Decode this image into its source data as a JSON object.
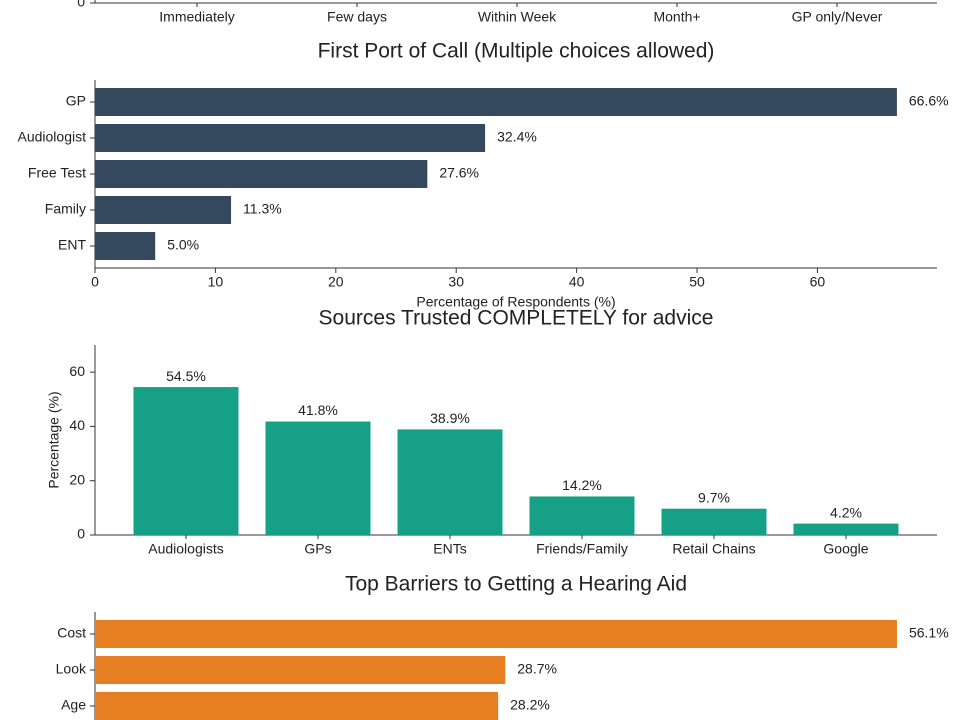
{
  "chart_data": [
    {
      "type": "bar",
      "categories": [
        "Immediately",
        "Few days",
        "Within Week",
        "Month+",
        "GP only/Never"
      ],
      "yticks": [
        0
      ]
    },
    {
      "type": "barh",
      "title": "First Port of Call (Multiple choices allowed)",
      "categories": [
        "GP",
        "Audiologist",
        "Free Test",
        "Family",
        "ENT"
      ],
      "values": [
        66.6,
        32.4,
        27.6,
        11.3,
        5.0
      ],
      "value_labels": [
        "66.6%",
        "32.4%",
        "27.6%",
        "11.3%",
        "5.0%"
      ],
      "color": "#34495e",
      "xlim": [
        0,
        69.93
      ],
      "xticks": [
        0,
        10,
        20,
        30,
        40,
        50,
        60
      ],
      "xlabel": "Percentage of Respondents (%)"
    },
    {
      "type": "bar",
      "title": "Sources Trusted COMPLETELY for advice",
      "categories": [
        "Audiologists",
        "GPs",
        "ENTs",
        "Friends/Family",
        "Retail Chains",
        "Google"
      ],
      "values": [
        54.5,
        41.8,
        38.9,
        14.2,
        9.7,
        4.2
      ],
      "value_labels": [
        "54.5%",
        "41.8%",
        "38.9%",
        "14.2%",
        "9.7%",
        "4.2%"
      ],
      "color": "#16a085",
      "ylim": [
        0,
        70
      ],
      "yticks": [
        0,
        20,
        40,
        60
      ],
      "ylabel": "Percentage (%)"
    },
    {
      "type": "barh",
      "title": "Top Barriers to Getting a Hearing Aid",
      "categories": [
        "Cost",
        "Look",
        "Age"
      ],
      "values": [
        56.1,
        28.7,
        28.2
      ],
      "value_labels": [
        "56.1%",
        "28.7%",
        "28.2%"
      ],
      "color": "#e67e22",
      "xlim": [
        0,
        58.9
      ]
    }
  ]
}
